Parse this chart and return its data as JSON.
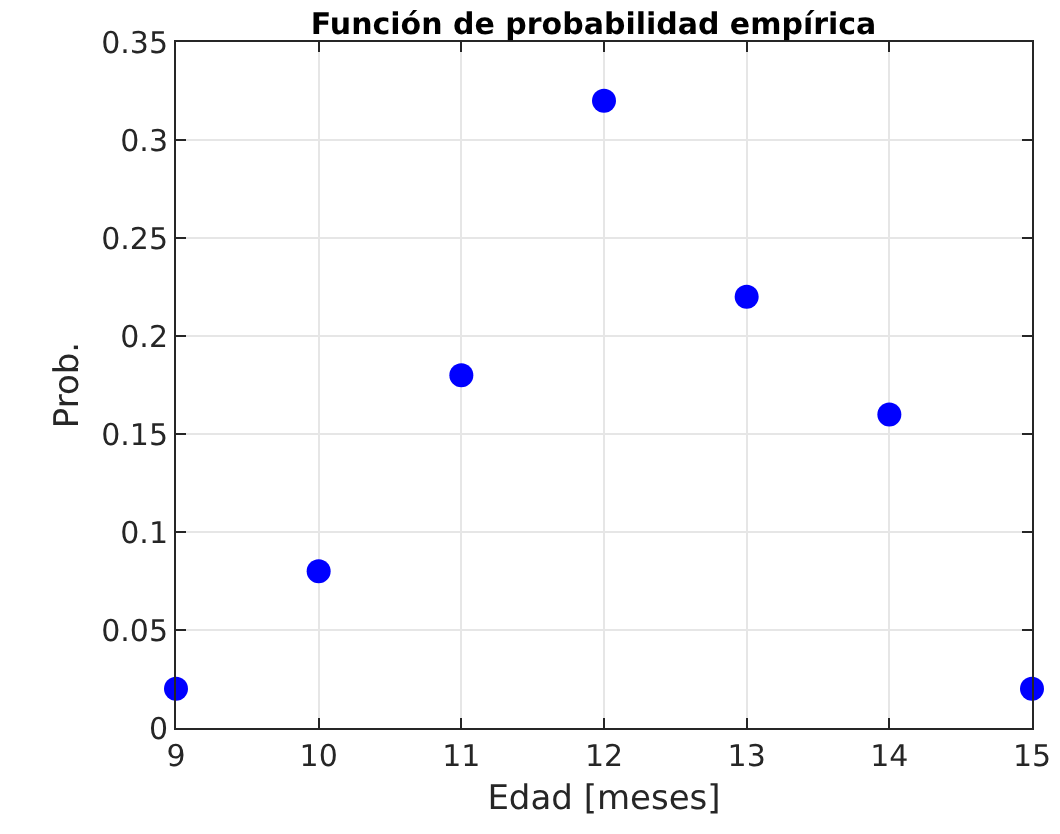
{
  "chart_data": {
    "type": "scatter",
    "title": "Función de probabilidad empírica",
    "xlabel": "Edad [meses]",
    "ylabel": "Prob.",
    "x": [
      9,
      10,
      11,
      12,
      13,
      14,
      15
    ],
    "series": [
      {
        "color": "#0000ff",
        "values": [
          0.02,
          0.08,
          0.18,
          0.32,
          0.22,
          0.16,
          0.02
        ]
      }
    ],
    "xlim": [
      9,
      15
    ],
    "xticks": [
      9,
      10,
      11,
      12,
      13,
      14,
      15
    ],
    "ylim": [
      0,
      0.35
    ],
    "yticks": [
      0,
      0.05,
      0.1,
      0.15,
      0.2,
      0.25,
      0.3,
      0.35
    ],
    "grid": true,
    "marker": "circle"
  }
}
